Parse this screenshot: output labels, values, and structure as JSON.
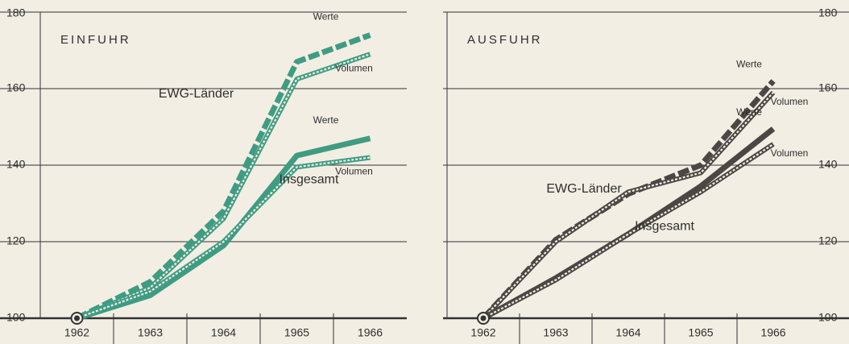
{
  "chart_data": [
    {
      "type": "line",
      "title": "EINFUHR",
      "categories": [
        "1962",
        "1963",
        "1964",
        "1965",
        "1966"
      ],
      "series": [
        {
          "name": "Werte",
          "color": "#3f9c82",
          "style": "dashed",
          "values": [
            100,
            109.5,
            128,
            167,
            174
          ]
        },
        {
          "name": "Volumen",
          "color": "#3f9c82",
          "style": "hollow",
          "values": [
            100,
            108,
            126,
            162.5,
            169
          ]
        },
        {
          "name": "Werte",
          "color": "#3f9c82",
          "style": "solid",
          "values": [
            100,
            106,
            119,
            142.5,
            147
          ]
        },
        {
          "name": "Volumen",
          "color": "#3f9c82",
          "style": "hollow",
          "values": [
            100,
            107,
            120,
            139.5,
            142
          ]
        }
      ],
      "annotations": [
        "EWG-Länder",
        "Insgesamt"
      ],
      "ylim": [
        100,
        180
      ],
      "yticks": [
        100,
        120,
        140,
        160,
        180
      ],
      "grid": true
    },
    {
      "type": "line",
      "title": "AUSFUHR",
      "categories": [
        "1962",
        "1963",
        "1964",
        "1965",
        "1966"
      ],
      "series": [
        {
          "name": "Werte",
          "color": "#4a4744",
          "style": "dashed",
          "values": [
            100,
            120.5,
            132.5,
            140,
            162
          ]
        },
        {
          "name": "Volumen",
          "color": "#4a4744",
          "style": "hollow",
          "values": [
            100,
            120,
            133,
            138,
            159
          ]
        },
        {
          "name": "Werte",
          "color": "#4a4744",
          "style": "solid",
          "values": [
            100,
            110.5,
            122,
            134.5,
            149.5
          ]
        },
        {
          "name": "Volumen",
          "color": "#4a4744",
          "style": "hollow",
          "values": [
            100,
            110,
            122,
            133,
            145.5
          ]
        }
      ],
      "annotations": [
        "EWG-Länder",
        "Insgesamt"
      ],
      "ylim": [
        100,
        180
      ],
      "yticks": [
        100,
        120,
        140,
        160,
        180
      ],
      "grid": true
    }
  ]
}
